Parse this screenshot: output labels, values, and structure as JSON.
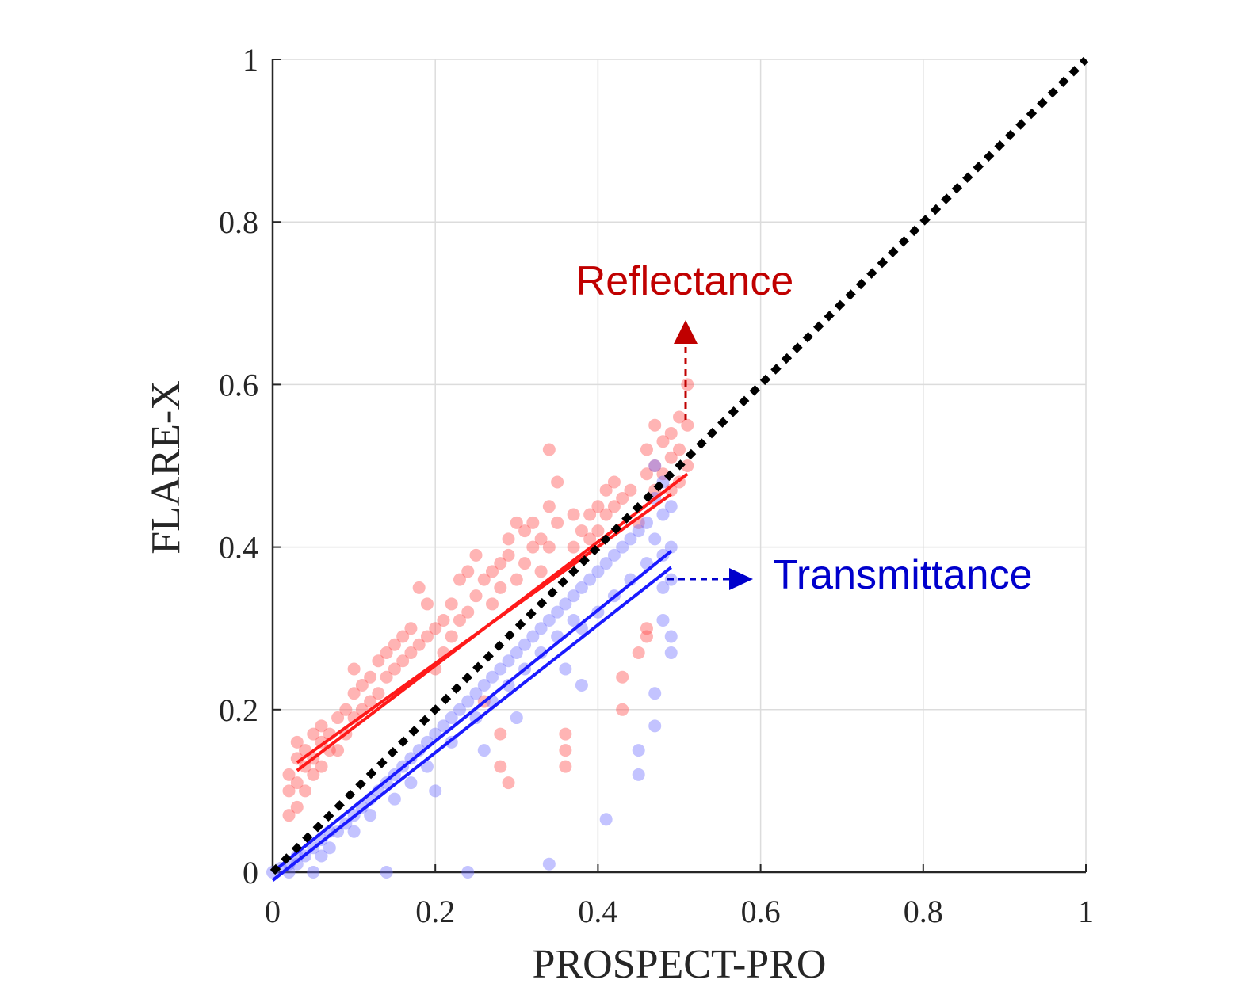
{
  "chart_data": {
    "type": "scatter",
    "xlabel": "PROSPECT-PRO",
    "ylabel": "FLARE-X",
    "xlim": [
      0,
      1
    ],
    "ylim": [
      0,
      1
    ],
    "xticks": [
      "0",
      "0.2",
      "0.4",
      "0.6",
      "0.8",
      "1"
    ],
    "yticks": [
      "0",
      "0.2",
      "0.4",
      "0.6",
      "0.8",
      "1"
    ],
    "grid": true,
    "annotations": [
      {
        "text": "Reflectance",
        "color": "#c00000"
      },
      {
        "text": "Transmittance",
        "color": "#0000cc"
      }
    ],
    "one_to_one_line": {
      "x": [
        0,
        1
      ],
      "y": [
        0,
        1
      ],
      "style": "dotted",
      "color": "#000000"
    },
    "series": [
      {
        "color": "#ff4d4d",
        "fit_lines": [
          {
            "x": [
              0.03,
              0.51
            ],
            "y": [
              0.125,
              0.49
            ]
          },
          {
            "x": [
              0.03,
              0.49
            ],
            "y": [
              0.135,
              0.465
            ]
          }
        ],
        "points": [
          [
            0.02,
            0.07
          ],
          [
            0.02,
            0.1
          ],
          [
            0.02,
            0.12
          ],
          [
            0.03,
            0.08
          ],
          [
            0.03,
            0.11
          ],
          [
            0.03,
            0.14
          ],
          [
            0.03,
            0.16
          ],
          [
            0.04,
            0.1
          ],
          [
            0.04,
            0.13
          ],
          [
            0.04,
            0.15
          ],
          [
            0.05,
            0.12
          ],
          [
            0.05,
            0.14
          ],
          [
            0.05,
            0.17
          ],
          [
            0.06,
            0.13
          ],
          [
            0.06,
            0.16
          ],
          [
            0.06,
            0.18
          ],
          [
            0.07,
            0.15
          ],
          [
            0.07,
            0.17
          ],
          [
            0.08,
            0.15
          ],
          [
            0.08,
            0.19
          ],
          [
            0.09,
            0.17
          ],
          [
            0.09,
            0.2
          ],
          [
            0.1,
            0.19
          ],
          [
            0.1,
            0.22
          ],
          [
            0.1,
            0.25
          ],
          [
            0.11,
            0.2
          ],
          [
            0.11,
            0.23
          ],
          [
            0.12,
            0.21
          ],
          [
            0.12,
            0.24
          ],
          [
            0.13,
            0.22
          ],
          [
            0.13,
            0.26
          ],
          [
            0.14,
            0.24
          ],
          [
            0.14,
            0.27
          ],
          [
            0.15,
            0.25
          ],
          [
            0.15,
            0.28
          ],
          [
            0.16,
            0.26
          ],
          [
            0.16,
            0.29
          ],
          [
            0.17,
            0.27
          ],
          [
            0.17,
            0.3
          ],
          [
            0.18,
            0.28
          ],
          [
            0.18,
            0.35
          ],
          [
            0.19,
            0.29
          ],
          [
            0.19,
            0.33
          ],
          [
            0.2,
            0.3
          ],
          [
            0.2,
            0.25
          ],
          [
            0.21,
            0.31
          ],
          [
            0.21,
            0.27
          ],
          [
            0.22,
            0.29
          ],
          [
            0.22,
            0.33
          ],
          [
            0.23,
            0.36
          ],
          [
            0.23,
            0.31
          ],
          [
            0.24,
            0.37
          ],
          [
            0.24,
            0.32
          ],
          [
            0.25,
            0.39
          ],
          [
            0.25,
            0.34
          ],
          [
            0.26,
            0.36
          ],
          [
            0.26,
            0.21
          ],
          [
            0.27,
            0.37
          ],
          [
            0.27,
            0.33
          ],
          [
            0.28,
            0.38
          ],
          [
            0.28,
            0.35
          ],
          [
            0.29,
            0.39
          ],
          [
            0.29,
            0.41
          ],
          [
            0.3,
            0.43
          ],
          [
            0.3,
            0.36
          ],
          [
            0.31,
            0.42
          ],
          [
            0.31,
            0.38
          ],
          [
            0.32,
            0.43
          ],
          [
            0.32,
            0.4
          ],
          [
            0.33,
            0.41
          ],
          [
            0.33,
            0.37
          ],
          [
            0.34,
            0.52
          ],
          [
            0.34,
            0.45
          ],
          [
            0.34,
            0.4
          ],
          [
            0.35,
            0.48
          ],
          [
            0.35,
            0.43
          ],
          [
            0.36,
            0.17
          ],
          [
            0.36,
            0.15
          ],
          [
            0.36,
            0.13
          ],
          [
            0.37,
            0.44
          ],
          [
            0.37,
            0.4
          ],
          [
            0.38,
            0.42
          ],
          [
            0.39,
            0.44
          ],
          [
            0.39,
            0.41
          ],
          [
            0.4,
            0.45
          ],
          [
            0.4,
            0.42
          ],
          [
            0.41,
            0.47
          ],
          [
            0.41,
            0.44
          ],
          [
            0.42,
            0.48
          ],
          [
            0.42,
            0.45
          ],
          [
            0.43,
            0.46
          ],
          [
            0.43,
            0.24
          ],
          [
            0.43,
            0.2
          ],
          [
            0.44,
            0.47
          ],
          [
            0.45,
            0.43
          ],
          [
            0.46,
            0.52
          ],
          [
            0.46,
            0.49
          ],
          [
            0.46,
            0.3
          ],
          [
            0.47,
            0.55
          ],
          [
            0.47,
            0.5
          ],
          [
            0.47,
            0.47
          ],
          [
            0.48,
            0.53
          ],
          [
            0.48,
            0.49
          ],
          [
            0.49,
            0.54
          ],
          [
            0.49,
            0.51
          ],
          [
            0.49,
            0.47
          ],
          [
            0.5,
            0.56
          ],
          [
            0.5,
            0.52
          ],
          [
            0.5,
            0.48
          ],
          [
            0.51,
            0.6
          ],
          [
            0.51,
            0.55
          ],
          [
            0.51,
            0.5
          ],
          [
            0.28,
            0.17
          ],
          [
            0.28,
            0.13
          ],
          [
            0.29,
            0.11
          ],
          [
            0.45,
            0.27
          ],
          [
            0.46,
            0.29
          ]
        ]
      },
      {
        "color": "#6f6fff",
        "fit_lines": [
          {
            "x": [
              0.0,
              0.49
            ],
            "y": [
              0.0,
              0.395
            ]
          },
          {
            "x": [
              0.0,
              0.49
            ],
            "y": [
              -0.01,
              0.375
            ]
          }
        ],
        "points": [
          [
            0.0,
            0.0
          ],
          [
            0.01,
            0.005
          ],
          [
            0.02,
            0.01
          ],
          [
            0.02,
            0.0
          ],
          [
            0.03,
            0.02
          ],
          [
            0.03,
            0.01
          ],
          [
            0.04,
            0.02
          ],
          [
            0.05,
            0.03
          ],
          [
            0.05,
            0.0
          ],
          [
            0.06,
            0.04
          ],
          [
            0.06,
            0.02
          ],
          [
            0.07,
            0.05
          ],
          [
            0.07,
            0.03
          ],
          [
            0.08,
            0.05
          ],
          [
            0.09,
            0.06
          ],
          [
            0.1,
            0.07
          ],
          [
            0.1,
            0.05
          ],
          [
            0.11,
            0.08
          ],
          [
            0.12,
            0.09
          ],
          [
            0.12,
            0.07
          ],
          [
            0.13,
            0.1
          ],
          [
            0.14,
            0.11
          ],
          [
            0.14,
            0.0
          ],
          [
            0.15,
            0.12
          ],
          [
            0.15,
            0.09
          ],
          [
            0.16,
            0.13
          ],
          [
            0.17,
            0.14
          ],
          [
            0.17,
            0.11
          ],
          [
            0.18,
            0.15
          ],
          [
            0.19,
            0.16
          ],
          [
            0.19,
            0.13
          ],
          [
            0.2,
            0.17
          ],
          [
            0.2,
            0.1
          ],
          [
            0.21,
            0.18
          ],
          [
            0.22,
            0.19
          ],
          [
            0.22,
            0.16
          ],
          [
            0.23,
            0.2
          ],
          [
            0.24,
            0.21
          ],
          [
            0.24,
            0.0
          ],
          [
            0.25,
            0.22
          ],
          [
            0.25,
            0.19
          ],
          [
            0.26,
            0.23
          ],
          [
            0.27,
            0.24
          ],
          [
            0.27,
            0.21
          ],
          [
            0.28,
            0.25
          ],
          [
            0.29,
            0.26
          ],
          [
            0.29,
            0.23
          ],
          [
            0.3,
            0.27
          ],
          [
            0.31,
            0.28
          ],
          [
            0.31,
            0.25
          ],
          [
            0.32,
            0.29
          ],
          [
            0.33,
            0.3
          ],
          [
            0.33,
            0.27
          ],
          [
            0.34,
            0.31
          ],
          [
            0.34,
            0.01
          ],
          [
            0.35,
            0.32
          ],
          [
            0.35,
            0.29
          ],
          [
            0.36,
            0.33
          ],
          [
            0.37,
            0.34
          ],
          [
            0.37,
            0.31
          ],
          [
            0.38,
            0.35
          ],
          [
            0.38,
            0.3
          ],
          [
            0.39,
            0.36
          ],
          [
            0.4,
            0.37
          ],
          [
            0.4,
            0.32
          ],
          [
            0.41,
            0.38
          ],
          [
            0.41,
            0.065
          ],
          [
            0.42,
            0.39
          ],
          [
            0.42,
            0.34
          ],
          [
            0.43,
            0.4
          ],
          [
            0.44,
            0.41
          ],
          [
            0.44,
            0.36
          ],
          [
            0.45,
            0.42
          ],
          [
            0.45,
            0.15
          ],
          [
            0.45,
            0.12
          ],
          [
            0.46,
            0.43
          ],
          [
            0.46,
            0.38
          ],
          [
            0.47,
            0.5
          ],
          [
            0.47,
            0.46
          ],
          [
            0.47,
            0.41
          ],
          [
            0.47,
            0.22
          ],
          [
            0.47,
            0.18
          ],
          [
            0.48,
            0.48
          ],
          [
            0.48,
            0.44
          ],
          [
            0.48,
            0.39
          ],
          [
            0.48,
            0.35
          ],
          [
            0.48,
            0.31
          ],
          [
            0.49,
            0.45
          ],
          [
            0.49,
            0.4
          ],
          [
            0.49,
            0.36
          ],
          [
            0.49,
            0.29
          ],
          [
            0.49,
            0.27
          ],
          [
            0.36,
            0.25
          ],
          [
            0.38,
            0.23
          ],
          [
            0.26,
            0.15
          ],
          [
            0.3,
            0.19
          ]
        ]
      }
    ]
  }
}
